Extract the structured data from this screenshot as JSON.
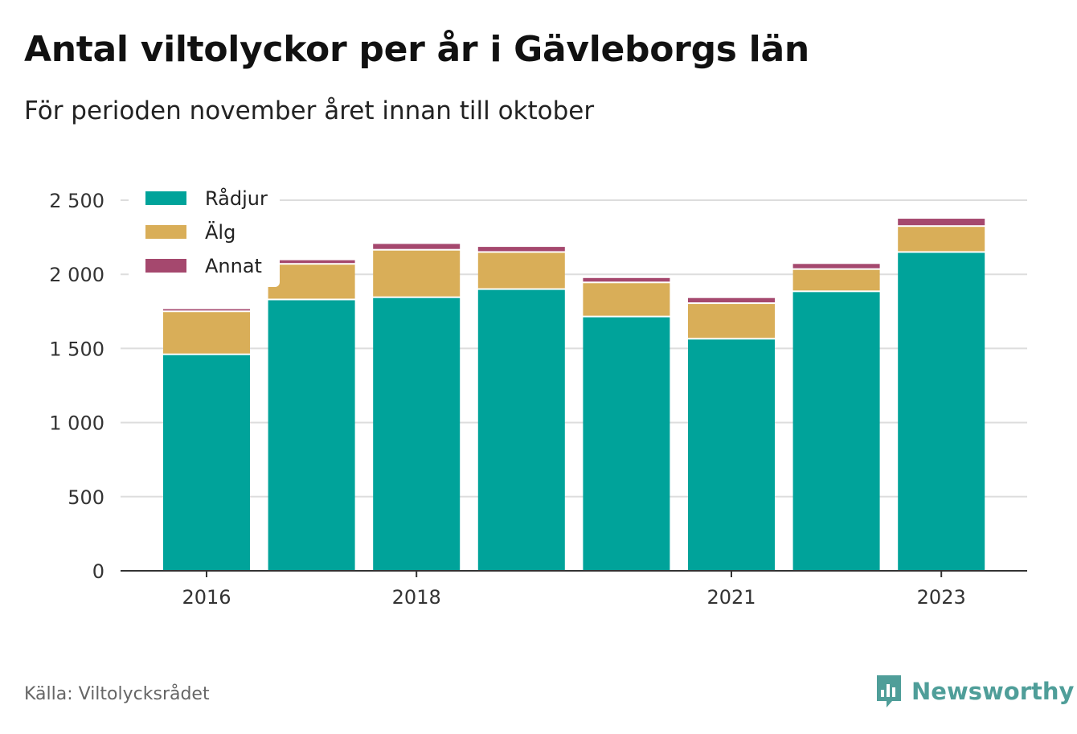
{
  "title": "Antal viltolyckor per år i Gävleborgs län",
  "subtitle": "För perioden november året innan till oktober",
  "source": "Källa: Viltolycksrådet",
  "brand": {
    "name": "Newsworthy",
    "icon": "newsworthy-bar-chart-icon",
    "color": "#4f9e99"
  },
  "colors": {
    "radjur": "#00a39a",
    "alg": "#d9ae58",
    "annat": "#a5486e",
    "grid": "#dddddd",
    "axis": "#333333"
  },
  "chart_data": {
    "type": "bar",
    "stacked": true,
    "categories": [
      "2016",
      "2017",
      "2018",
      "2019",
      "2020",
      "2021",
      "2022",
      "2023"
    ],
    "x_tick_labels": [
      "2016",
      "",
      "2018",
      "",
      "",
      "2021",
      "",
      "2023"
    ],
    "series": [
      {
        "name": "Rådjur",
        "color": "#00a39a",
        "values": [
          1455,
          1825,
          1840,
          1895,
          1710,
          1560,
          1880,
          2145
        ]
      },
      {
        "name": "Älg",
        "color": "#d9ae58",
        "values": [
          290,
          240,
          320,
          250,
          230,
          240,
          150,
          175
        ]
      },
      {
        "name": "Annat",
        "color": "#a5486e",
        "values": [
          20,
          30,
          45,
          40,
          35,
          40,
          40,
          55
        ]
      }
    ],
    "y_ticks": [
      0,
      500,
      1000,
      1500,
      2000,
      2500
    ],
    "y_tick_labels": [
      "0",
      "500",
      "1 000",
      "1 500",
      "2 000",
      "2 500"
    ],
    "ylim": [
      0,
      2500
    ],
    "xlabel": "",
    "ylabel": "",
    "grid": true,
    "legend_position": "top-left"
  }
}
